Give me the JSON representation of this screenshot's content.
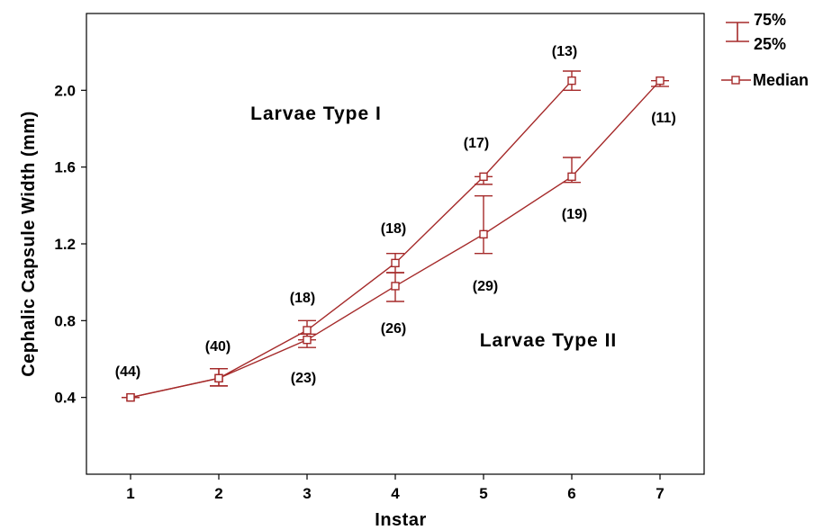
{
  "chart_data": {
    "type": "line",
    "xlabel": "Instar",
    "ylabel": "Cephalic Capsule Width (mm)",
    "xlim": [
      0.5,
      7.5
    ],
    "ylim": [
      0,
      2.4
    ],
    "x_ticks": [
      "1",
      "2",
      "3",
      "4",
      "5",
      "6",
      "7"
    ],
    "y_ticks": [
      "0.4",
      "0.8",
      "1.2",
      "1.6",
      "2.0"
    ],
    "color": "#a52a2a",
    "legend": {
      "position": "top-right",
      "q75": "75%",
      "q25": "25%",
      "median": "Median"
    },
    "series": [
      {
        "name": "Larvae Type I",
        "points": [
          {
            "x": 1,
            "median": 0.4,
            "q25": 0.4,
            "q75": 0.4,
            "n": "(44)"
          },
          {
            "x": 2,
            "median": 0.5,
            "q25": 0.46,
            "q75": 0.55,
            "n": "(40)"
          },
          {
            "x": 3,
            "median": 0.75,
            "q25": 0.7,
            "q75": 0.8,
            "n": "(18)"
          },
          {
            "x": 4,
            "median": 1.1,
            "q25": 1.05,
            "q75": 1.15,
            "n": "(18)"
          },
          {
            "x": 5,
            "median": 1.55,
            "q25": 1.51,
            "q75": 1.55,
            "n": "(17)"
          },
          {
            "x": 6,
            "median": 2.05,
            "q25": 2.0,
            "q75": 2.1,
            "n": "(13)"
          }
        ]
      },
      {
        "name": "Larvae Type II",
        "points": [
          {
            "x": 1,
            "median": 0.4,
            "q25": 0.4,
            "q75": 0.4,
            "n": ""
          },
          {
            "x": 2,
            "median": 0.5,
            "q25": 0.46,
            "q75": 0.55,
            "n": ""
          },
          {
            "x": 3,
            "median": 0.7,
            "q25": 0.66,
            "q75": 0.73,
            "n": "(23)"
          },
          {
            "x": 4,
            "median": 0.98,
            "q25": 0.9,
            "q75": 1.05,
            "n": "(26)"
          },
          {
            "x": 5,
            "median": 1.25,
            "q25": 1.15,
            "q75": 1.45,
            "n": "(29)"
          },
          {
            "x": 6,
            "median": 1.55,
            "q25": 1.52,
            "q75": 1.65,
            "n": "(19)"
          },
          {
            "x": 7,
            "median": 2.05,
            "q25": 2.02,
            "q75": 2.05,
            "n": "(11)"
          }
        ]
      }
    ]
  }
}
